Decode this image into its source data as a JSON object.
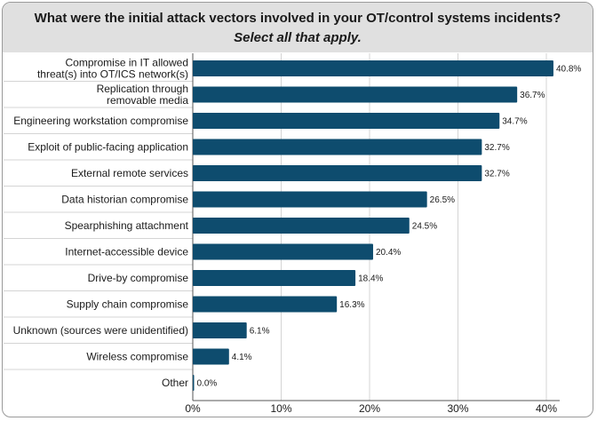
{
  "header": {
    "title": "What were the initial attack vectors involved in your OT/control systems incidents?",
    "subtitle": "Select all that apply."
  },
  "colors": {
    "bar": "#0e4c6e",
    "header_bg": "#e0e0e0",
    "grid": "#d4d4d4",
    "axis": "#555555"
  },
  "chart_data": {
    "type": "bar",
    "orientation": "horizontal",
    "title": "What were the initial attack vectors involved in your OT/control systems incidents?",
    "subtitle": "Select all that apply.",
    "categories": [
      [
        "Compromise in IT allowed",
        "threat(s) into OT/ICS network(s)"
      ],
      [
        "Replication through",
        "removable media"
      ],
      [
        "Engineering workstation compromise"
      ],
      [
        "Exploit of public-facing application"
      ],
      [
        "External remote services"
      ],
      [
        "Data historian compromise"
      ],
      [
        "Spearphishing attachment"
      ],
      [
        "Internet-accessible device"
      ],
      [
        "Drive-by compromise"
      ],
      [
        "Supply chain compromise"
      ],
      [
        "Unknown (sources were unidentified)"
      ],
      [
        "Wireless compromise"
      ],
      [
        "Other"
      ]
    ],
    "values": [
      40.8,
      36.7,
      34.7,
      32.7,
      32.7,
      26.5,
      24.5,
      20.4,
      18.4,
      16.3,
      6.1,
      4.1,
      0.0
    ],
    "value_labels": [
      "40.8%",
      "36.7%",
      "34.7%",
      "32.7%",
      "32.7%",
      "26.5%",
      "24.5%",
      "20.4%",
      "18.4%",
      "16.3%",
      "6.1%",
      "4.1%",
      "0.0%"
    ],
    "xlim": [
      0,
      45
    ],
    "xticks": [
      0,
      10,
      20,
      30,
      40
    ],
    "xtick_labels": [
      "0%",
      "10%",
      "20%",
      "30%",
      "40%"
    ],
    "grid": true
  }
}
